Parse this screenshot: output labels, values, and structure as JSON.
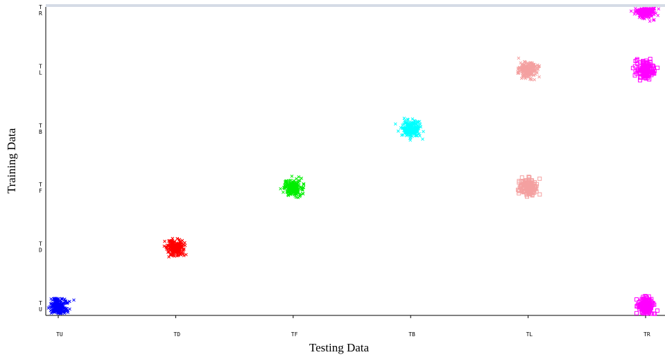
{
  "chart_data": {
    "type": "scatter",
    "xlabel": "Testing Data",
    "ylabel": "Training Data",
    "x_ticks": [
      "TU",
      "TD",
      "TF",
      "TB",
      "TL",
      "TR"
    ],
    "y_ticks": [
      {
        "lines": [
          "T",
          "U"
        ]
      },
      {
        "lines": [
          "T",
          "D"
        ]
      },
      {
        "lines": [
          "T",
          "F"
        ]
      },
      {
        "lines": [
          "T",
          "B"
        ]
      },
      {
        "lines": [
          "T",
          "L"
        ]
      },
      {
        "lines": [
          "T",
          "R"
        ]
      }
    ],
    "xlim": [
      0,
      5
    ],
    "ylim": [
      0,
      5
    ],
    "grid": false,
    "clusters": [
      {
        "x": 0,
        "y": 0,
        "color": "#0000ff",
        "marker": "x"
      },
      {
        "x": 1,
        "y": 1,
        "color": "#ff0000",
        "marker": "x"
      },
      {
        "x": 2,
        "y": 2,
        "color": "#00ee00",
        "marker": "x"
      },
      {
        "x": 3,
        "y": 3,
        "color": "#00ffff",
        "marker": "x"
      },
      {
        "x": 4,
        "y": 2,
        "color": "#f4a0a0",
        "marker": "square"
      },
      {
        "x": 4,
        "y": 4,
        "color": "#f4a0a0",
        "marker": "x"
      },
      {
        "x": 5,
        "y": 0,
        "color": "#ff00ff",
        "marker": "square"
      },
      {
        "x": 5,
        "y": 4,
        "color": "#ff00ff",
        "marker": "square"
      },
      {
        "x": 5,
        "y": 5,
        "color": "#ff00ff",
        "marker": "x"
      }
    ]
  }
}
